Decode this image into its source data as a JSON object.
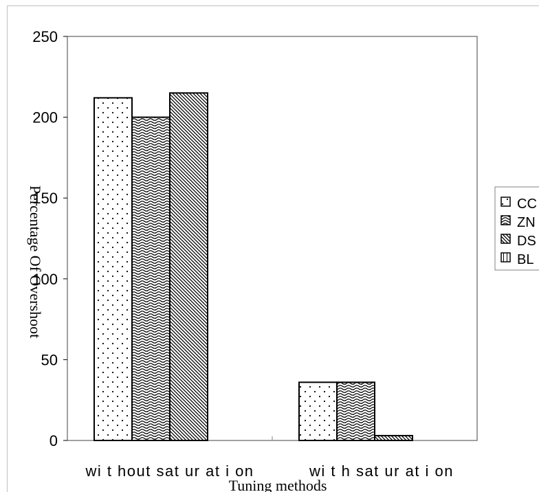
{
  "chart_data": {
    "type": "bar",
    "categories": [
      "wi t hout  sat ur at i on",
      "wi t h  sat ur at i on"
    ],
    "series": [
      {
        "name": "CC",
        "values": [
          212,
          36
        ]
      },
      {
        "name": "ZN",
        "values": [
          200,
          36
        ]
      },
      {
        "name": "DS",
        "values": [
          215,
          3
        ]
      },
      {
        "name": "BL",
        "values": [
          0,
          0
        ]
      }
    ],
    "title": "",
    "xlabel": "Tuning methods",
    "ylabel": "Percentage Of Overshoot",
    "ylim": [
      0,
      250
    ],
    "yticks": [
      0,
      50,
      100,
      150,
      200,
      250
    ],
    "grid": false,
    "legend_position": "right"
  }
}
